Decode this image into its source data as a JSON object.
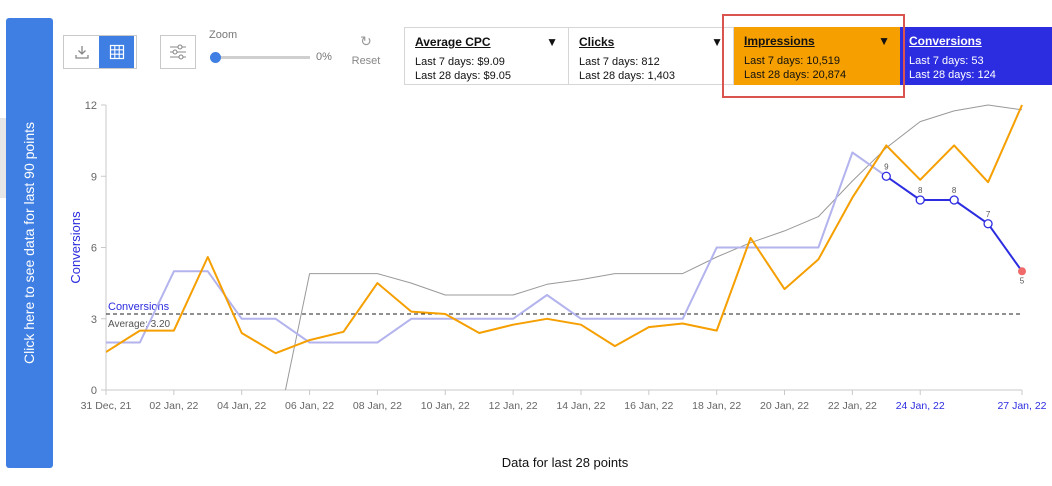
{
  "sidebar": {
    "button_label": "Click here to see data for last 90 points"
  },
  "toolbar": {
    "download_icon": "download-icon",
    "table_icon": "table-grid-icon",
    "settings_icon": "sliders-icon",
    "zoom_label": "Zoom",
    "zoom_value": "0%",
    "zoom_fraction": 0,
    "reset_label": "Reset"
  },
  "metrics": [
    {
      "title": "Average CPC",
      "last7": "Last 7 days: $9.09",
      "last28": "Last 28 days: $9.05",
      "bg": "#ffffff"
    },
    {
      "title": "Clicks",
      "last7": "Last 7 days: 812",
      "last28": "Last 28 days: 1,403",
      "bg": "#ffffff"
    },
    {
      "title": "Impressions",
      "last7": "Last 7 days: 10,519",
      "last28": "Last 28 days: 20,874",
      "bg": "#f59f00"
    },
    {
      "title": "Conversions",
      "last7": "Last 7 days: 53",
      "last28": "Last 28 days: 124",
      "bg": "#2c2ce0"
    }
  ],
  "colors": {
    "accent": "#3f7fe3",
    "orange": "#f59f00",
    "blue": "#2c2ce0",
    "lavender": "#b3b3ee",
    "gray": "#999999",
    "highlight": "#d9534f",
    "end_point": "#f06a6a"
  },
  "chart_data": {
    "type": "line",
    "xlabel": "Data for last 28 points",
    "ylabel": "Conversions",
    "ylim": [
      0,
      12
    ],
    "yticks": [
      0,
      3,
      6,
      9,
      12
    ],
    "x_tick_labels": [
      {
        "i": 0,
        "label": "31 Dec, 21"
      },
      {
        "i": 2,
        "label": "02 Jan, 22"
      },
      {
        "i": 4,
        "label": "04 Jan, 22"
      },
      {
        "i": 6,
        "label": "06 Jan, 22"
      },
      {
        "i": 8,
        "label": "08 Jan, 22"
      },
      {
        "i": 10,
        "label": "10 Jan, 22"
      },
      {
        "i": 12,
        "label": "12 Jan, 22"
      },
      {
        "i": 14,
        "label": "14 Jan, 22"
      },
      {
        "i": 16,
        "label": "16 Jan, 22"
      },
      {
        "i": 18,
        "label": "18 Jan, 22"
      },
      {
        "i": 20,
        "label": "20 Jan, 22"
      },
      {
        "i": 22,
        "label": "22 Jan, 22"
      },
      {
        "i": 24,
        "label": "24 Jan, 22",
        "highlight": true
      },
      {
        "i": 27,
        "label": "27 Jan, 22",
        "highlight": true
      }
    ],
    "average": {
      "name": "Conversions",
      "label": "Average: 3.20",
      "value": 3.2
    },
    "series": [
      {
        "key": "conversions_past",
        "color": "#b3b3ee",
        "values": [
          2,
          2,
          5,
          5,
          3,
          3,
          2,
          2,
          2,
          3,
          3,
          3,
          3,
          4,
          3,
          3,
          3,
          3,
          6,
          6,
          6,
          6,
          10,
          9
        ]
      },
      {
        "key": "impressions",
        "color": "#f59f00",
        "values": [
          1.6,
          2.5,
          2.5,
          5.6,
          2.4,
          1.55,
          2.1,
          2.45,
          4.5,
          3.3,
          3.2,
          2.4,
          2.75,
          3.0,
          2.75,
          1.85,
          2.65,
          2.8,
          2.5,
          6.4,
          4.25,
          5.5,
          8.1,
          10.3,
          8.85,
          10.3,
          8.75,
          12.0
        ]
      },
      {
        "key": "trend",
        "color": "#999999",
        "values": [
          null,
          null,
          null,
          null,
          null,
          -2.0,
          4.9,
          4.9,
          4.9,
          4.5,
          4.0,
          4.0,
          4.0,
          4.45,
          4.65,
          4.9,
          4.9,
          4.9,
          5.6,
          6.2,
          6.7,
          7.3,
          8.8,
          10.2,
          11.3,
          11.75,
          12.0,
          11.8
        ]
      },
      {
        "key": "conversions_recent",
        "color": "#2c2ce0",
        "start_index": 23,
        "values": [
          9,
          8,
          8,
          7,
          5
        ],
        "point_labels": [
          "9",
          "8",
          "8",
          "7",
          "5"
        ]
      }
    ]
  }
}
